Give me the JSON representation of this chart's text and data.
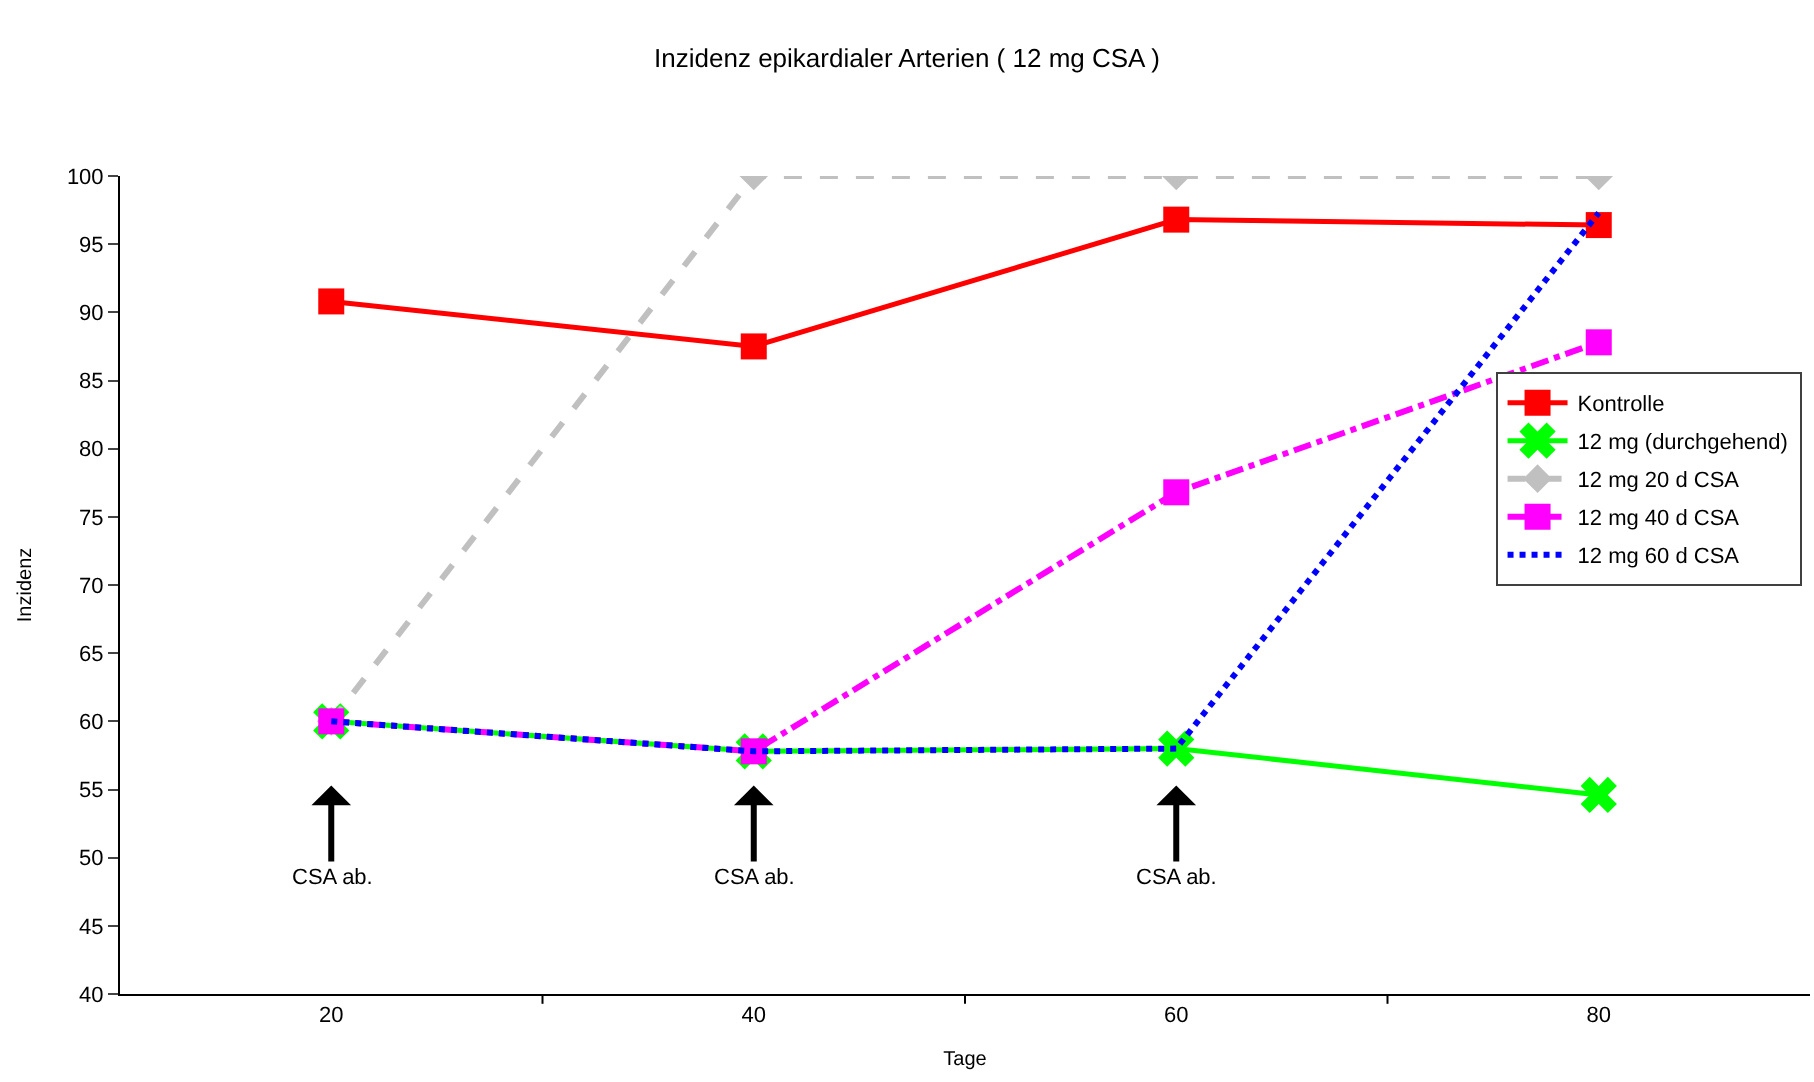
{
  "chart_data": {
    "type": "line",
    "title": "Inzidenz epikardialer Arterien ( 12 mg CSA )",
    "xlabel": "Tage",
    "ylabel": "Inzidenz",
    "categories": [
      "20",
      "40",
      "60",
      "80"
    ],
    "ylim": [
      40,
      100
    ],
    "yticks": [
      40,
      45,
      50,
      55,
      60,
      65,
      70,
      75,
      80,
      85,
      90,
      95,
      100
    ],
    "legend": "right",
    "series": [
      {
        "name": "Kontrolle",
        "color": "#ff0000",
        "marker": "square",
        "line_style": "solid",
        "values": [
          90.8,
          87.5,
          96.8,
          96.4
        ]
      },
      {
        "name": "12 mg (durchgehend)",
        "color": "#00ff00",
        "marker": "cross",
        "line_style": "solid",
        "values": [
          60.0,
          57.8,
          58.0,
          54.6
        ]
      },
      {
        "name": "12 mg 20 d CSA",
        "color": "#c0c0c0",
        "marker": "diamond",
        "line_style": "dashed",
        "values": [
          60.0,
          100.0,
          100.0,
          100.0
        ]
      },
      {
        "name": "12 mg 40 d CSA",
        "color": "#ff00ff",
        "marker": "square",
        "line_style": "dashdot",
        "values": [
          60.0,
          57.8,
          76.8,
          87.8
        ]
      },
      {
        "name": "12 mg 60 d CSA",
        "color": "#0000ff",
        "marker": "none",
        "line_style": "dotted",
        "values": [
          60.0,
          57.8,
          58.0,
          97.3
        ]
      }
    ],
    "annotations": [
      "CSA ab.",
      "CSA ab.",
      "CSA ab."
    ]
  }
}
